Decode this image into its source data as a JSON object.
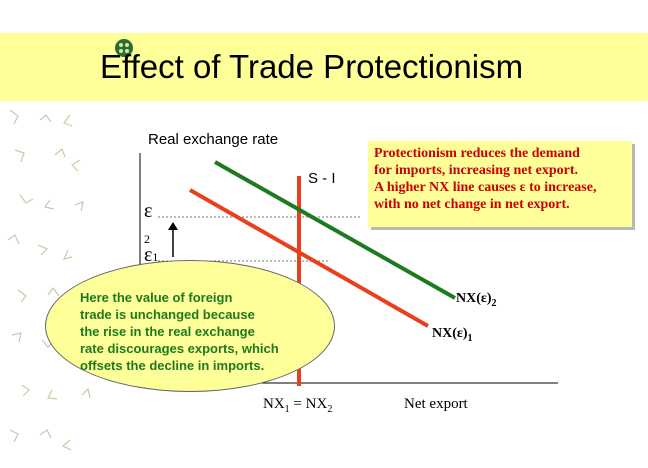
{
  "slide": {
    "title": "Effect of Trade Protectionism",
    "colors": {
      "title_band": "#ffff99",
      "callout_bg": "#ffff99",
      "callout_text": "#cc0000",
      "ellipse_text": "#1f7a1f",
      "nx1_line": "#e8401c",
      "nx2_line": "#1e7a1e",
      "s_minus_i_line": "#e8401c"
    }
  },
  "diagram": {
    "y_axis_label": "Real exchange rate",
    "x_axis_label": "Net export",
    "eps_upper": "ε",
    "eps_upper_sub": "2",
    "eps_lower": "ε",
    "eps_lower_sub": "1",
    "s_minus_i_label": "S - I",
    "nx2_label": "NX(ε)",
    "nx2_sub": "2",
    "nx1_label": "NX(ε)",
    "nx1_sub": "1",
    "equilibrium_label_a": "NX",
    "equilibrium_label_a_sub": "1",
    "equilibrium_label_eq": " = ",
    "equilibrium_label_b": "NX",
    "equilibrium_label_b_sub": "2"
  },
  "callout": {
    "lines": [
      "Protectionism reduces the demand",
      "for imports, increasing net export.",
      "A higher NX line causes ε to increase,",
      "with no net change in net export."
    ]
  },
  "ellipse_note": {
    "lines": [
      "Here the value of foreign",
      "trade is unchanged because",
      "the rise in the real exchange",
      "rate discourages exports, which",
      "offsets the decline in imports."
    ]
  }
}
